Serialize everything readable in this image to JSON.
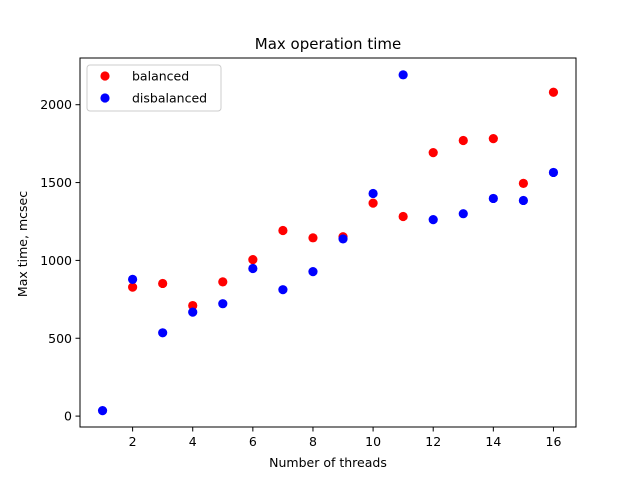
{
  "chart_data": {
    "type": "scatter",
    "title": "Max operation time",
    "xlabel": "Number of threads",
    "ylabel": "Max time, mcsec",
    "xlim": [
      0.25,
      16.75
    ],
    "ylim": [
      -70,
      2300
    ],
    "xticks": [
      2,
      4,
      6,
      8,
      10,
      12,
      14,
      16
    ],
    "yticks": [
      0,
      500,
      1000,
      1500,
      2000
    ],
    "grid": false,
    "legend_position": "top-left",
    "series": [
      {
        "name": "balanced",
        "color": "#ff0000",
        "x": [
          2,
          3,
          4,
          5,
          6,
          7,
          8,
          9,
          10,
          11,
          12,
          13,
          14,
          15,
          16
        ],
        "y": [
          828,
          852,
          710,
          862,
          1005,
          1192,
          1145,
          1152,
          1368,
          1282,
          1692,
          1770,
          1782,
          1495,
          2080
        ]
      },
      {
        "name": "disbalanced",
        "color": "#0000ff",
        "x": [
          1,
          2,
          3,
          4,
          5,
          6,
          7,
          8,
          9,
          10,
          11,
          12,
          13,
          14,
          15,
          16
        ],
        "y": [
          35,
          878,
          535,
          668,
          722,
          948,
          812,
          928,
          1138,
          1430,
          2192,
          1262,
          1300,
          1398,
          1385,
          1565
        ]
      }
    ]
  }
}
